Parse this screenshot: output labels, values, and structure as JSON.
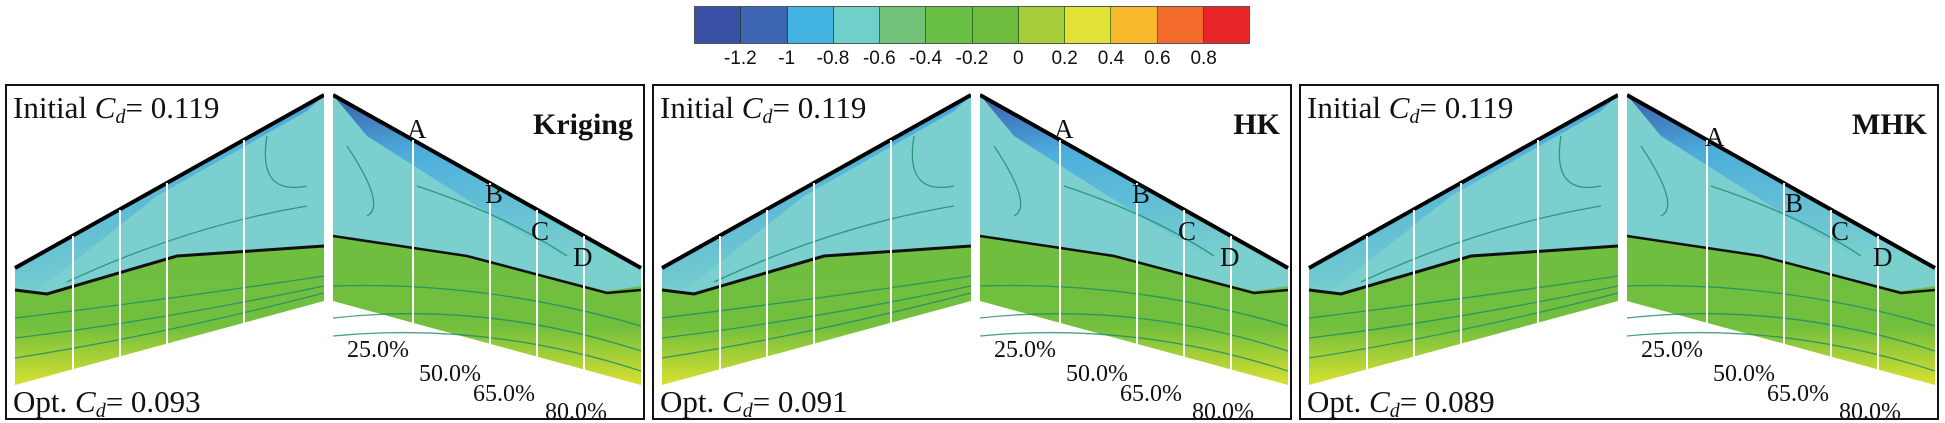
{
  "colorbar": {
    "ticks": [
      "-1.2",
      "-1",
      "-0.8",
      "-0.6",
      "-0.4",
      "-0.2",
      "0",
      "0.2",
      "0.4",
      "0.6",
      "0.8"
    ],
    "colors": [
      "#3a4fa6",
      "#3e66b4",
      "#43b3e2",
      "#6fcfc9",
      "#72c27a",
      "#6abf45",
      "#6fbd3f",
      "#a6cc3a",
      "#e2e236",
      "#f8b82c",
      "#f26b2b",
      "#e8262a"
    ]
  },
  "panels": [
    {
      "method": "Kriging",
      "initial_label": "Initial",
      "cd_symbol": "C",
      "cd_sub": "d",
      "initial_value": "= 0.119",
      "opt_label": "Opt.",
      "opt_value": "= 0.093"
    },
    {
      "method": "HK",
      "initial_label": "Initial",
      "cd_symbol": "C",
      "cd_sub": "d",
      "initial_value": "= 0.119",
      "opt_label": "Opt.",
      "opt_value": "= 0.091"
    },
    {
      "method": "MHK",
      "initial_label": "Initial",
      "cd_symbol": "C",
      "cd_sub": "d",
      "initial_value": "= 0.119",
      "opt_label": "Opt.",
      "opt_value": "= 0.089"
    }
  ],
  "sections": [
    "A",
    "B",
    "C",
    "D"
  ],
  "stations": [
    "25.0%",
    "50.0%",
    "65.0%",
    "80.0%"
  ]
}
